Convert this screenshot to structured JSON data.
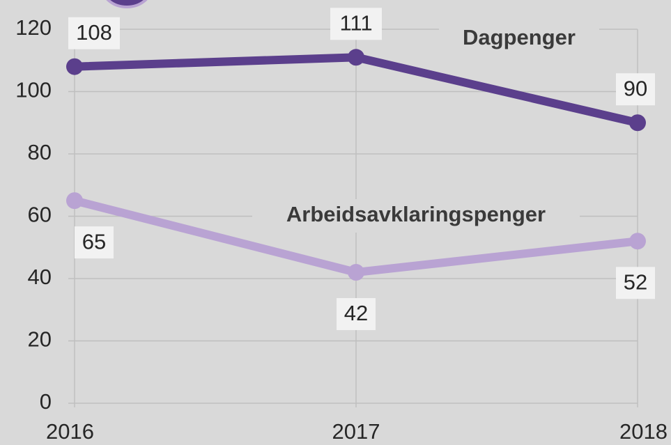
{
  "chart_data": {
    "type": "line",
    "categories": [
      "2016",
      "2017",
      "2018"
    ],
    "series": [
      {
        "name": "Dagpenger",
        "color": "#5b3f8c",
        "values": [
          108,
          111,
          90
        ]
      },
      {
        "name": "Arbeidsavklaringspenger",
        "color": "#b9a3d3",
        "values": [
          65,
          42,
          52
        ]
      }
    ],
    "ylim": [
      0,
      120
    ],
    "yticks": [
      0,
      20,
      40,
      60,
      80,
      100,
      120
    ],
    "grid": true
  }
}
